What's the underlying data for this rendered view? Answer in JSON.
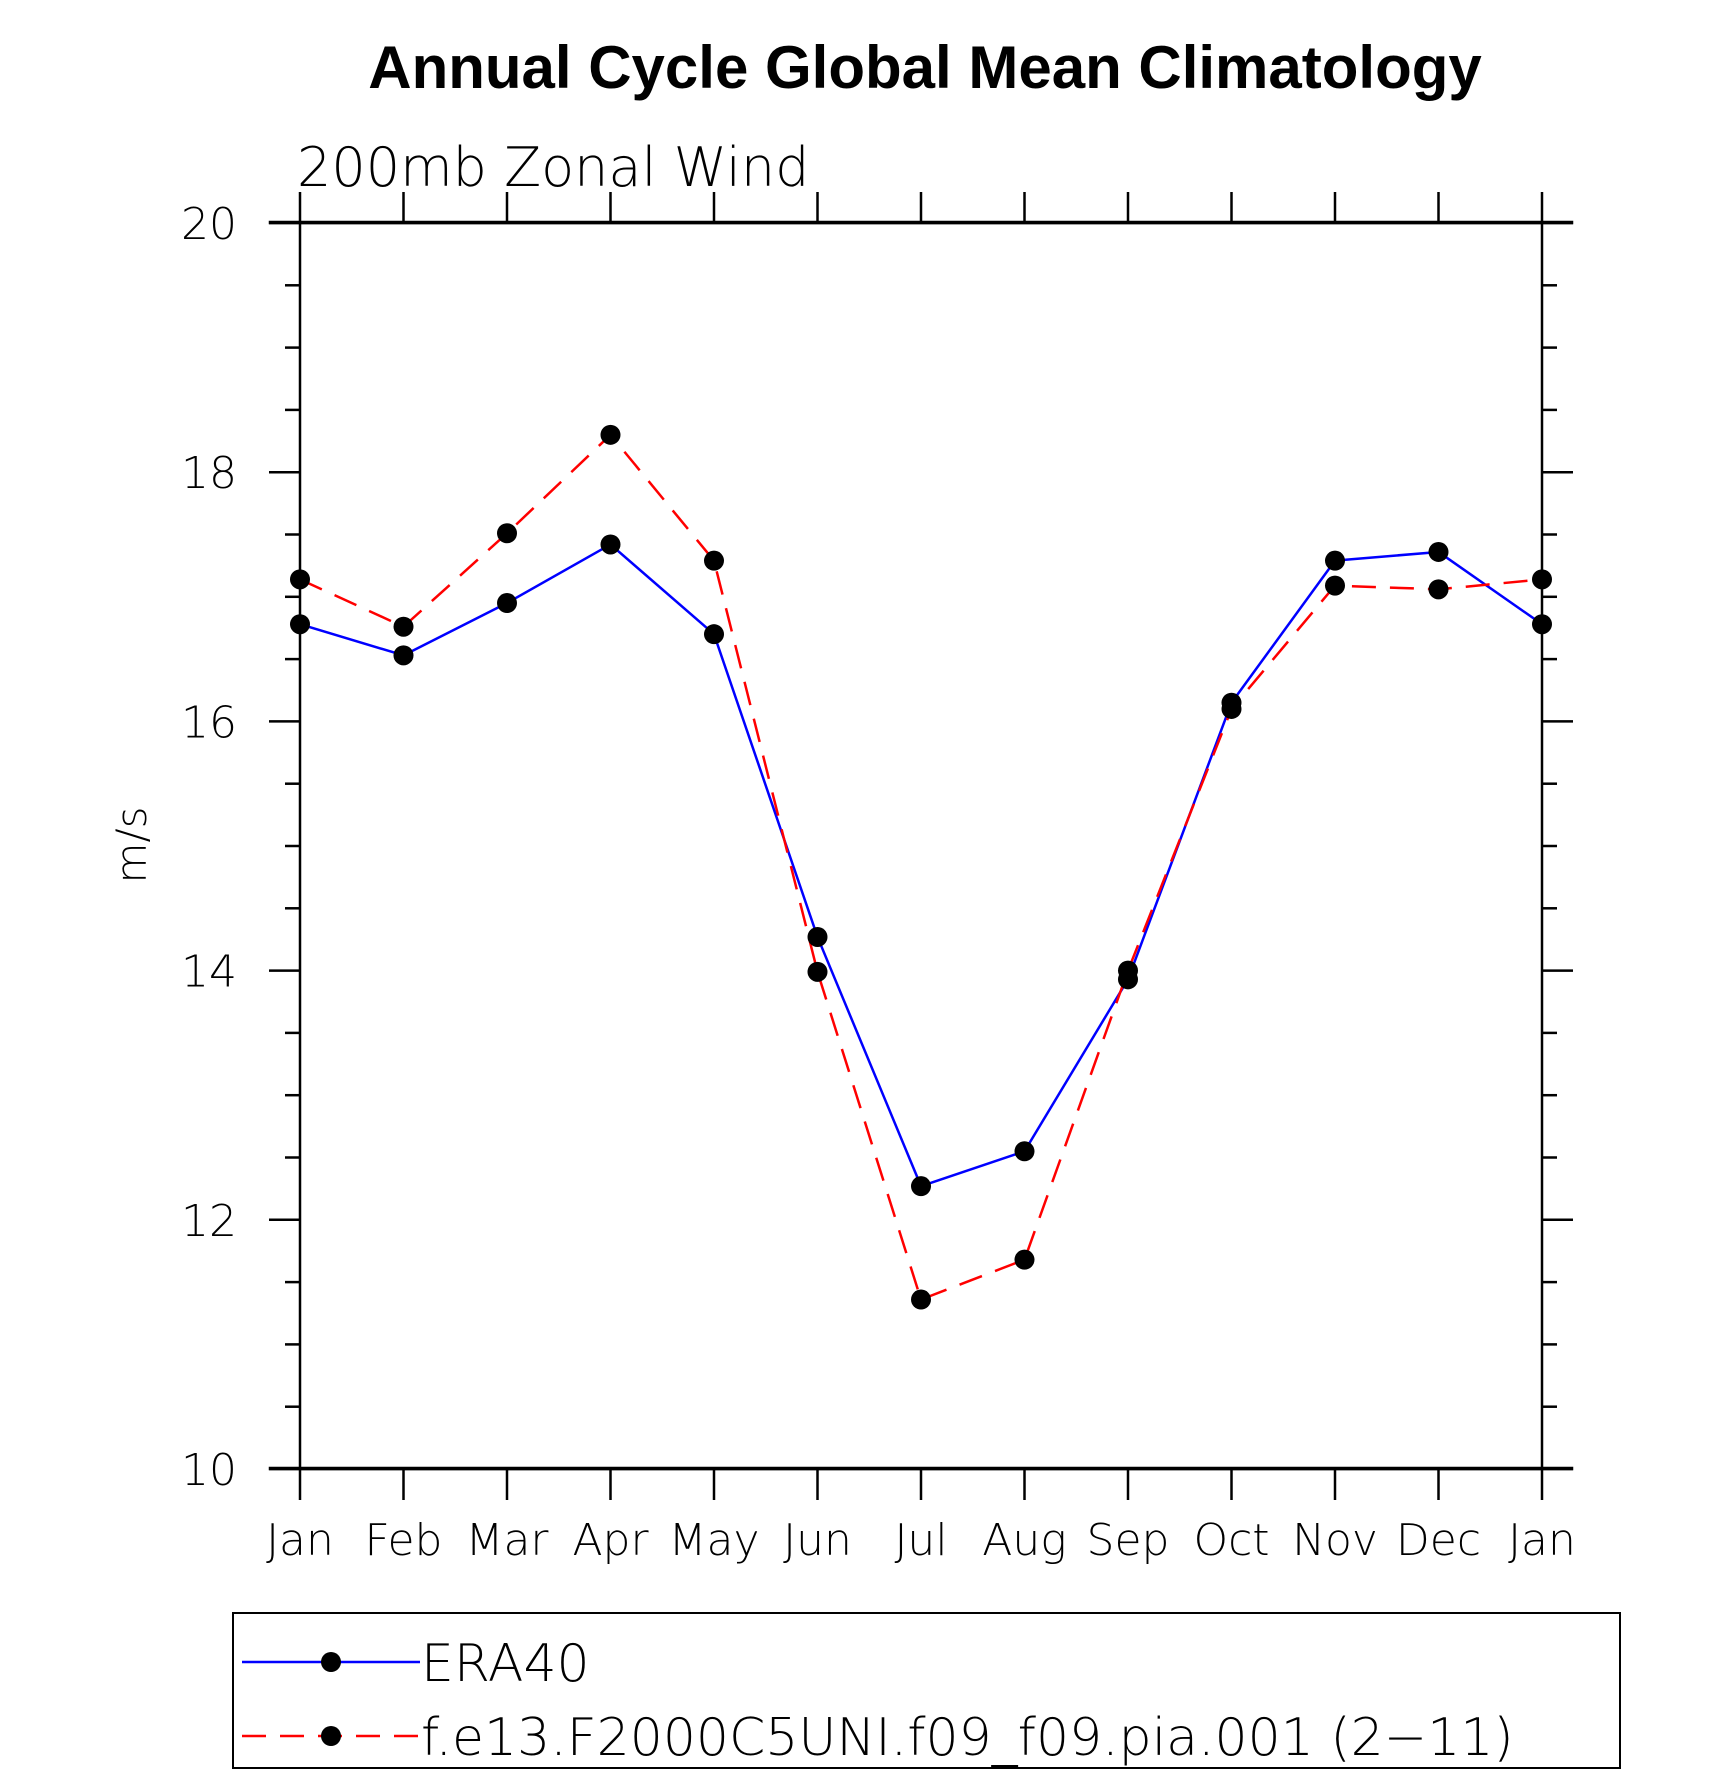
{
  "chart_data": {
    "type": "line",
    "title": "Annual Cycle Global Mean Climatology",
    "subtitle": "200mb Zonal Wind",
    "ylabel": "m/s",
    "xlabel": "",
    "categories": [
      "Jan",
      "Feb",
      "Mar",
      "Apr",
      "May",
      "Jun",
      "Jul",
      "Aug",
      "Sep",
      "Oct",
      "Nov",
      "Dec",
      "Jan"
    ],
    "ylim": [
      10,
      20
    ],
    "yticks": [
      10,
      12,
      14,
      16,
      18,
      20
    ],
    "ytick_labels": [
      "10",
      "12",
      "14",
      "16",
      "18",
      "20"
    ],
    "y_minor_step": 0.5,
    "grid": false,
    "legend_position": "bottom",
    "series": [
      {
        "name": "ERA40",
        "color": "#0000ff",
        "line_style": "solid",
        "marker": "filled-circle",
        "values": [
          16.78,
          16.53,
          16.95,
          17.42,
          16.7,
          14.27,
          12.27,
          12.55,
          13.93,
          16.15,
          17.29,
          17.36,
          16.78
        ]
      },
      {
        "name": "f.e13.F2000C5UNI.f09_f09.pia.001 (2−11)",
        "color": "#ff0000",
        "line_style": "dashed",
        "marker": "filled-circle",
        "values": [
          17.14,
          16.76,
          17.51,
          18.3,
          17.29,
          13.99,
          11.36,
          11.68,
          14.0,
          16.1,
          17.09,
          17.06,
          17.14
        ]
      }
    ]
  }
}
